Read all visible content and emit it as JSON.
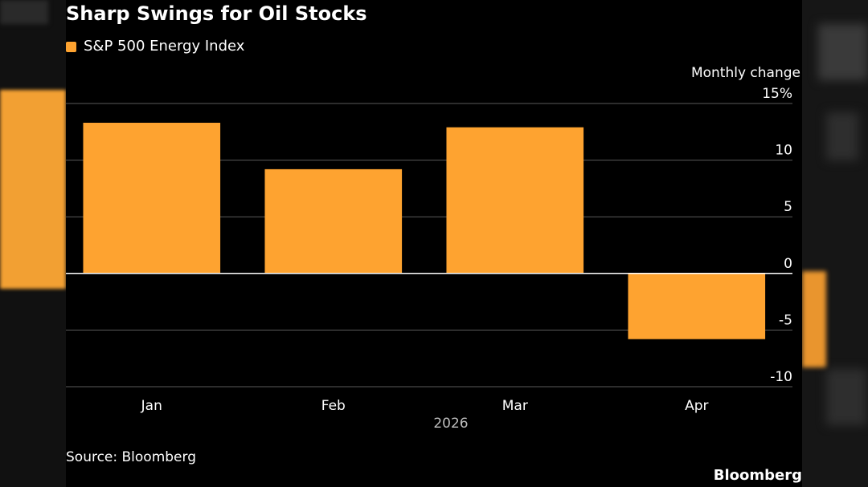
{
  "colors": {
    "bar": "#fea330",
    "background": "#000000",
    "grid": "#5a5a5a",
    "zero_line": "#ffffff",
    "text": "#ffffff",
    "year_text": "#bdbdbd"
  },
  "header": {
    "title": "Sharp Swings for Oil Stocks"
  },
  "legend": {
    "label": "S&P 500 Energy Index"
  },
  "footer": {
    "source": "Source: Bloomberg",
    "brand": "Bloomberg"
  },
  "chart_data": {
    "type": "bar",
    "title": "Sharp Swings for Oil Stocks",
    "categories": [
      "Jan",
      "Feb",
      "Mar",
      "Apr"
    ],
    "x_group_label": "2026",
    "series": [
      {
        "name": "S&P 500 Energy Index",
        "values": [
          13.3,
          9.2,
          12.9,
          -5.8
        ]
      }
    ],
    "ylabel": "Monthly change",
    "ylim": [
      -10,
      15
    ],
    "yticks": [
      15,
      10,
      5,
      0,
      -5,
      -10
    ],
    "ytick_labels": [
      "15%",
      "10",
      "5",
      "0",
      "-5",
      "-10"
    ],
    "y_axis_side": "right",
    "grid": true,
    "legend_position": "top-left"
  }
}
